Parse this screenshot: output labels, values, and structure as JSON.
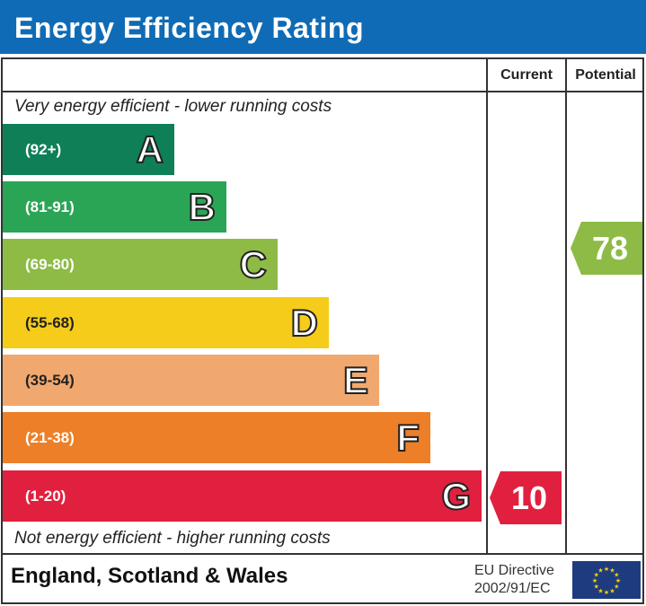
{
  "title": "Energy Efficiency Rating",
  "columns": {
    "current": "Current",
    "potential": "Potential"
  },
  "top_note": "Very energy efficient - lower running costs",
  "bottom_note": "Not energy efficient - higher running costs",
  "bands": [
    {
      "range": "(92+)",
      "letter": "A",
      "color": "#0f7f58"
    },
    {
      "range": "(81-91)",
      "letter": "B",
      "color": "#2aa556"
    },
    {
      "range": "(69-80)",
      "letter": "C",
      "color": "#8dbb45"
    },
    {
      "range": "(55-68)",
      "letter": "D",
      "color": "#f6cc1a"
    },
    {
      "range": "(39-54)",
      "letter": "E",
      "color": "#f1a86e"
    },
    {
      "range": "(21-38)",
      "letter": "F",
      "color": "#ec7f28"
    },
    {
      "range": "(1-20)",
      "letter": "G",
      "color": "#e1203f"
    }
  ],
  "current": {
    "value": "10",
    "band": "G",
    "color": "#e1203f"
  },
  "potential": {
    "value": "78",
    "band": "C",
    "color": "#8dbb45"
  },
  "footer": {
    "region": "England, Scotland & Wales",
    "directive_line1": "EU Directive",
    "directive_line2": "2002/91/EC",
    "flag_icon": "eu-flag-icon"
  }
}
